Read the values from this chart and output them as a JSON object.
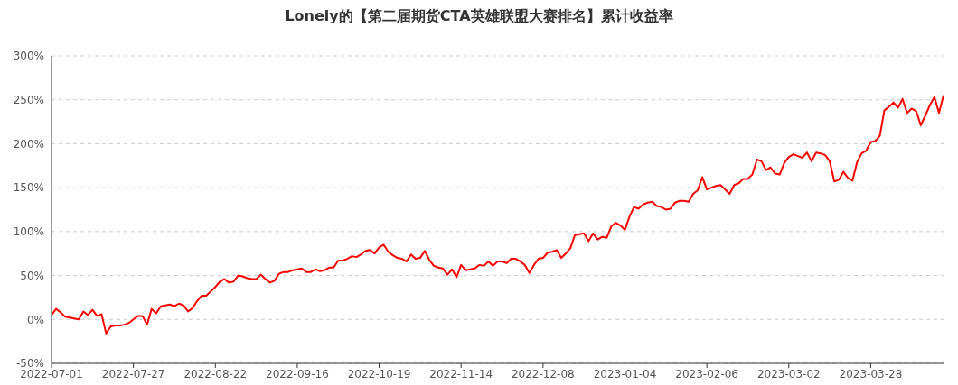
{
  "chart_data": {
    "type": "line",
    "title": "Lonely的【第二届期货CTA英雄联盟大赛排名】累计收益率",
    "categories": [
      "2022-07-01",
      null,
      null,
      null,
      null,
      null,
      null,
      null,
      null,
      null,
      null,
      null,
      null,
      null,
      null,
      null,
      null,
      null,
      "2022-07-27",
      null,
      null,
      null,
      null,
      null,
      null,
      null,
      null,
      null,
      null,
      null,
      null,
      null,
      null,
      null,
      null,
      null,
      "2022-08-22",
      null,
      null,
      null,
      null,
      null,
      null,
      null,
      null,
      null,
      null,
      null,
      null,
      null,
      null,
      null,
      null,
      null,
      "2022-09-16",
      null,
      null,
      null,
      null,
      null,
      null,
      null,
      null,
      null,
      null,
      null,
      null,
      null,
      null,
      null,
      null,
      null,
      "2022-10-19",
      null,
      null,
      null,
      null,
      null,
      null,
      null,
      null,
      null,
      null,
      null,
      null,
      null,
      null,
      null,
      null,
      null,
      "2022-11-14",
      null,
      null,
      null,
      null,
      null,
      null,
      null,
      null,
      null,
      null,
      null,
      null,
      null,
      null,
      null,
      null,
      null,
      "2022-12-08",
      null,
      null,
      null,
      null,
      null,
      null,
      null,
      null,
      null,
      null,
      null,
      null,
      null,
      null,
      null,
      null,
      null,
      "2023-01-04",
      null,
      null,
      null,
      null,
      null,
      null,
      null,
      null,
      null,
      null,
      null,
      null,
      null,
      null,
      null,
      null,
      null,
      "2023-02-06",
      null,
      null,
      null,
      null,
      null,
      null,
      null,
      null,
      null,
      null,
      null,
      null,
      null,
      null,
      null,
      null,
      null,
      "2023-03-02",
      null,
      null,
      null,
      null,
      null,
      null,
      null,
      null,
      null,
      null,
      null,
      null,
      null,
      null,
      null,
      null,
      null,
      "2023-03-28",
      null,
      null,
      null,
      null,
      null,
      null,
      null,
      null,
      null,
      null,
      null,
      null,
      null,
      null,
      null,
      null
    ],
    "values": [
      5,
      12,
      8,
      3,
      2,
      1,
      0,
      9,
      5,
      11,
      4,
      6,
      -16,
      -8,
      -7,
      -7,
      -6,
      -4,
      0,
      4,
      4,
      -6,
      12,
      7,
      15,
      16,
      17,
      15,
      18,
      16,
      9,
      13,
      21,
      27,
      27,
      32,
      37,
      43,
      46,
      42,
      43,
      50,
      49,
      47,
      46,
      46,
      51,
      46,
      42,
      44,
      52,
      54,
      54,
      56,
      57,
      58,
      54,
      54,
      57,
      55,
      56,
      59,
      59,
      67,
      67,
      69,
      72,
      71,
      74,
      78,
      79,
      75,
      82,
      85,
      77,
      73,
      70,
      69,
      66,
      74,
      69,
      70,
      78,
      68,
      61,
      59,
      58,
      51,
      57,
      48,
      62,
      56,
      57,
      58,
      62,
      61,
      66,
      61,
      66,
      66,
      64,
      69,
      69,
      66,
      62,
      53,
      62,
      69,
      70,
      76,
      77,
      79,
      70,
      75,
      81,
      96,
      97,
      98,
      89,
      98,
      91,
      94,
      93,
      106,
      110,
      107,
      102,
      117,
      128,
      126,
      131,
      133,
      134,
      129,
      128,
      125,
      126,
      133,
      135,
      135,
      134,
      143,
      147,
      162,
      148,
      150,
      152,
      153,
      148,
      143,
      153,
      155,
      160,
      160,
      165,
      182,
      180,
      170,
      173,
      166,
      165,
      178,
      185,
      188,
      186,
      184,
      190,
      180,
      190,
      189,
      187,
      180,
      157,
      159,
      168,
      161,
      158,
      179,
      189,
      192,
      202,
      203,
      209,
      238,
      242,
      247,
      241,
      251,
      235,
      240,
      237,
      221,
      232,
      244,
      253,
      235,
      255
    ],
    "color": "#ff0000",
    "ylim": [
      -50,
      300
    ],
    "yticks": [
      {
        "value": -50,
        "label": "-50%"
      },
      {
        "value": 0,
        "label": "0%"
      },
      {
        "value": 50,
        "label": "50%"
      },
      {
        "value": 100,
        "label": "100%"
      },
      {
        "value": 150,
        "label": "150%"
      },
      {
        "value": 200,
        "label": "200%"
      },
      {
        "value": 250,
        "label": "250%"
      },
      {
        "value": 300,
        "label": "300%"
      }
    ],
    "grid": "y",
    "line_style": "solid"
  }
}
